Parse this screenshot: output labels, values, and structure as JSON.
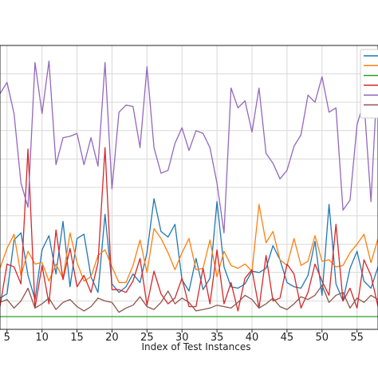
{
  "chart_data": {
    "type": "line",
    "xlabel": "Index of Test Instances",
    "ylabel": "",
    "xlim": [
      4,
      58
    ],
    "ylim": [
      0,
      20
    ],
    "grid": true,
    "legend_placement": "top-right",
    "x_ticks": [
      5,
      10,
      15,
      20,
      25,
      30,
      35,
      40,
      45,
      50,
      55
    ],
    "x": [
      4,
      5,
      6,
      7,
      8,
      9,
      10,
      11,
      12,
      13,
      14,
      15,
      16,
      17,
      18,
      19,
      20,
      21,
      22,
      23,
      24,
      25,
      26,
      27,
      28,
      29,
      30,
      31,
      32,
      33,
      34,
      35,
      36,
      37,
      38,
      39,
      40,
      41,
      42,
      43,
      44,
      45,
      46,
      47,
      48,
      49,
      50,
      51,
      52,
      53,
      54,
      55,
      56,
      57,
      58
    ],
    "series": [
      {
        "color": "#1f77b4",
        "values": [
          2.2,
          2.5,
          6.3,
          6.8,
          3.8,
          2.1,
          5.6,
          6.6,
          3.9,
          7.6,
          3.0,
          6.4,
          6.7,
          3.7,
          2.6,
          8.1,
          3.2,
          2.6,
          3.0,
          3.9,
          3.3,
          5.4,
          9.2,
          6.9,
          6.5,
          7.4,
          3.5,
          2.7,
          5.0,
          2.8,
          3.6,
          9.0,
          4.4,
          3.0,
          2.9,
          3.2,
          4.1,
          4.0,
          4.3,
          5.9,
          4.9,
          3.3,
          3.0,
          2.9,
          3.8,
          6.2,
          2.4,
          8.8,
          3.2,
          2.0,
          4.3,
          5.5,
          3.4,
          2.9,
          4.4
        ]
      },
      {
        "color": "#ff7f0e",
        "values": [
          4.3,
          5.7,
          6.7,
          3.8,
          5.5,
          4.6,
          4.7,
          3.4,
          4.6,
          3.6,
          6.8,
          4.7,
          3.4,
          3.7,
          5.2,
          5.6,
          4.4,
          3.3,
          3.3,
          4.5,
          6.3,
          4.0,
          7.1,
          6.4,
          5.4,
          4.2,
          5.4,
          6.4,
          4.2,
          4.3,
          6.3,
          3.7,
          5.5,
          4.5,
          4.3,
          4.6,
          4.1,
          8.8,
          6.1,
          6.9,
          4.9,
          4.5,
          6.4,
          4.5,
          4.8,
          6.6,
          4.8,
          4.9,
          4.4,
          4.5,
          5.4,
          6.0,
          6.7,
          4.7,
          6.4
        ]
      },
      {
        "color": "#2ca02c",
        "values": [
          0.9,
          0.9,
          0.9,
          0.9,
          0.9,
          0.9,
          0.9,
          0.9,
          0.9,
          0.9,
          0.9,
          0.9,
          0.9,
          0.9,
          0.9,
          0.9,
          0.9,
          0.9,
          0.9,
          0.9,
          0.9,
          0.9,
          0.9,
          0.9,
          0.9,
          0.9,
          0.9,
          0.9,
          0.9,
          0.9,
          0.9,
          0.9,
          0.9,
          0.9,
          0.9,
          0.9,
          0.9,
          0.9,
          0.9,
          0.9,
          0.9,
          0.9,
          0.9,
          0.9,
          0.9,
          0.9,
          0.9,
          0.9,
          0.9,
          0.9,
          0.9,
          0.9,
          0.9,
          0.9,
          0.9
        ]
      },
      {
        "color": "#d62728",
        "values": [
          1.6,
          4.6,
          4.4,
          3.2,
          12.7,
          1.5,
          4.5,
          1.8,
          7.0,
          3.5,
          5.7,
          3.0,
          3.8,
          2.6,
          4.7,
          12.8,
          2.8,
          2.8,
          2.6,
          3.4,
          5.0,
          1.7,
          4.1,
          2.5,
          1.8,
          2.2,
          3.6,
          1.6,
          1.6,
          4.3,
          1.8,
          5.6,
          1.8,
          3.3,
          1.3,
          3.6,
          4.2,
          1.5,
          5.2,
          2.0,
          2.2,
          4.6,
          3.9,
          1.5,
          2.6,
          4.6,
          3.4,
          2.4,
          7.4,
          2.0,
          2.9,
          1.5,
          4.9,
          3.8,
          1.6
        ]
      },
      {
        "color": "#9467bd",
        "values": [
          16.6,
          17.4,
          15.2,
          10.3,
          8.6,
          18.8,
          15.2,
          18.9,
          11.6,
          13.5,
          13.6,
          13.8,
          11.6,
          13.5,
          11.5,
          18.8,
          9.9,
          15.3,
          15.8,
          15.7,
          12.8,
          18.5,
          12.8,
          11.0,
          11.2,
          13.1,
          14.2,
          12.6,
          14.0,
          13.8,
          12.8,
          10.3,
          6.8,
          17.0,
          15.6,
          16.1,
          13.9,
          17.0,
          12.4,
          11.7,
          10.6,
          11.2,
          12.9,
          13.7,
          16.5,
          16.0,
          17.8,
          15.3,
          15.6,
          8.4,
          9.1,
          14.4,
          16.1,
          9.0,
          18.6
        ]
      },
      {
        "color": "#8c564b",
        "values": [
          1.9,
          2.1,
          1.5,
          2.0,
          2.9,
          1.5,
          1.8,
          2.2,
          1.4,
          1.9,
          2.1,
          1.6,
          1.3,
          1.6,
          2.2,
          2.0,
          1.9,
          1.2,
          1.5,
          1.7,
          2.3,
          1.6,
          1.4,
          1.9,
          2.7,
          1.8,
          2.2,
          1.9,
          1.3,
          1.4,
          1.5,
          1.7,
          1.6,
          1.5,
          1.9,
          2.4,
          2.1,
          1.5,
          1.8,
          2.2,
          1.6,
          1.4,
          1.8,
          2.3,
          2.1,
          2.4,
          3.1,
          1.9,
          2.4,
          2.6,
          1.5,
          2.2,
          1.9,
          2.4,
          2.1
        ]
      }
    ]
  }
}
